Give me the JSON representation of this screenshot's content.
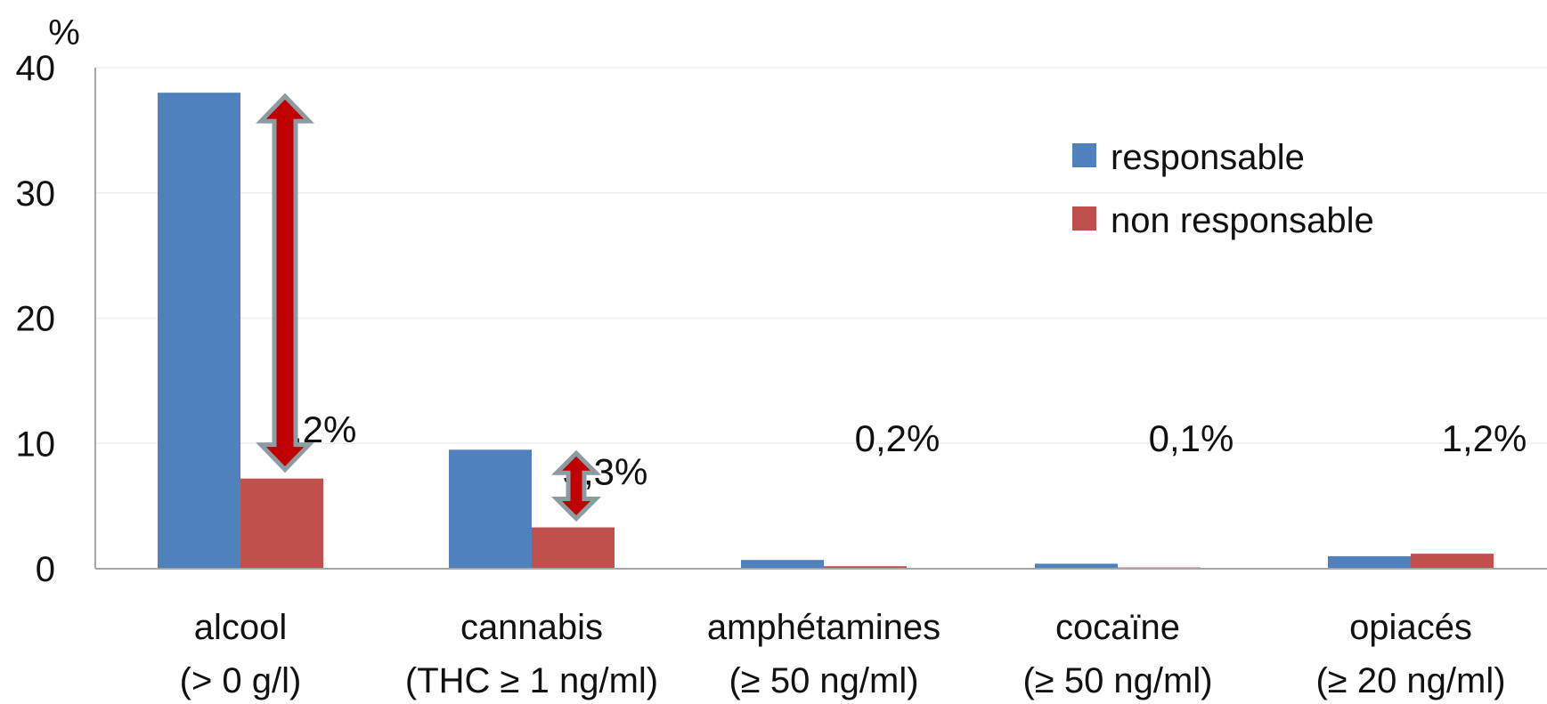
{
  "chart_data": {
    "type": "bar",
    "y_unit": "%",
    "ylim": [
      0,
      40
    ],
    "yticks": [
      0,
      10,
      20,
      30,
      40
    ],
    "grid": true,
    "legend_position": "top-right",
    "categories": [
      {
        "name": "alcool",
        "threshold": "(> 0 g/l)"
      },
      {
        "name": "cannabis",
        "threshold": "(THC ≥ 1 ng/ml)"
      },
      {
        "name": "amphétamines",
        "threshold": "(≥ 50 ng/ml)"
      },
      {
        "name": "cocaïne",
        "threshold": "(≥ 50 ng/ml)"
      },
      {
        "name": "opiacés",
        "threshold": "(≥ 20 ng/ml)"
      }
    ],
    "series": [
      {
        "name": "responsable",
        "color": "#4f81bd",
        "values": [
          38.0,
          9.5,
          0.7,
          0.4,
          1.0
        ]
      },
      {
        "name": "non responsable",
        "color": "#c0504d",
        "values": [
          7.2,
          3.3,
          0.2,
          0.1,
          1.2
        ]
      }
    ],
    "data_labels": [
      "7,2%",
      "3,3%",
      "0,2%",
      "0,1%",
      "1,2%"
    ],
    "annotations": [
      {
        "type": "double-arrow",
        "category_index": 0,
        "from": 7.2,
        "to": 38.0,
        "color": "#c00000"
      },
      {
        "type": "double-arrow",
        "category_index": 1,
        "from": 3.3,
        "to": 9.5,
        "color": "#c00000"
      }
    ]
  }
}
